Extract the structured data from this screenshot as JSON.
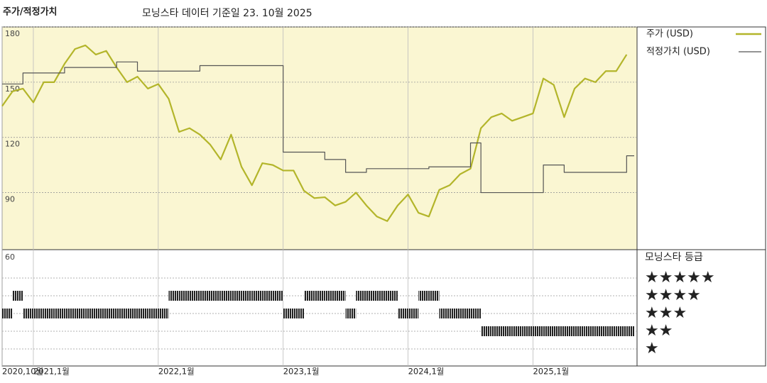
{
  "chart_data": {
    "type": "line",
    "title": "주가/적정가치",
    "subtitle": "모닝스타 데이터 기준일 23. 10월 2025",
    "x": [
      "2020-10",
      "2020-11",
      "2020-12",
      "2021-01",
      "2021-02",
      "2021-03",
      "2021-04",
      "2021-05",
      "2021-06",
      "2021-07",
      "2021-08",
      "2021-09",
      "2021-10",
      "2021-11",
      "2021-12",
      "2022-01",
      "2022-02",
      "2022-03",
      "2022-04",
      "2022-05",
      "2022-06",
      "2022-07",
      "2022-08",
      "2022-09",
      "2022-10",
      "2022-11",
      "2022-12",
      "2023-01",
      "2023-02",
      "2023-03",
      "2023-04",
      "2023-05",
      "2023-06",
      "2023-07",
      "2023-08",
      "2023-09",
      "2023-10",
      "2023-11",
      "2023-12",
      "2024-01",
      "2024-02",
      "2024-03",
      "2024-04",
      "2024-05",
      "2024-06",
      "2024-07",
      "2024-08",
      "2024-09",
      "2024-10",
      "2024-11",
      "2024-12",
      "2025-01",
      "2025-02",
      "2025-03",
      "2025-04",
      "2025-05",
      "2025-06",
      "2025-07",
      "2025-08",
      "2025-09",
      "2025-10"
    ],
    "series": [
      {
        "name": "주가 (USD)",
        "color": "#b3b52a",
        "values": [
          137,
          145,
          146.5,
          139,
          150,
          150,
          160,
          168,
          170,
          165,
          167,
          158,
          150,
          153,
          146.5,
          149,
          141,
          123,
          125,
          121.5,
          116,
          108,
          121.5,
          104,
          94,
          106,
          105,
          102,
          102,
          91,
          87,
          87.5,
          83,
          85,
          90,
          83,
          77,
          74.5,
          83,
          89,
          79,
          77,
          91.5,
          94,
          100,
          103,
          125,
          131,
          133,
          129,
          131,
          133,
          152,
          148.5,
          131,
          146.5,
          152,
          150,
          156,
          156,
          165
        ]
      },
      {
        "name": "적정가치 (USD)",
        "color": "#555555",
        "step": true,
        "values": [
          149,
          149,
          155,
          155,
          155,
          155,
          158,
          158,
          158,
          158,
          158,
          161,
          161,
          156,
          156,
          156,
          156,
          156,
          156,
          159,
          159,
          159,
          159,
          159,
          159,
          159,
          159,
          112,
          112,
          112,
          112,
          108,
          108,
          101,
          101,
          103,
          103,
          103,
          103,
          103,
          103,
          104,
          104,
          104,
          104,
          117,
          90,
          90,
          90,
          90,
          90,
          90,
          105,
          105,
          101,
          101,
          101,
          101,
          101,
          101,
          110
        ]
      }
    ],
    "xlim": [
      "2020-10",
      "2025-11"
    ],
    "xticks": [
      {
        "value": "2020-10",
        "label": "2020,10월"
      },
      {
        "value": "2021-01",
        "label": "2021,1월"
      },
      {
        "value": "2022-01",
        "label": "2022,1월"
      },
      {
        "value": "2023-01",
        "label": "2023,1월"
      },
      {
        "value": "2024-01",
        "label": "2024,1월"
      },
      {
        "value": "2025-01",
        "label": "2025,1월"
      }
    ],
    "ylim": [
      59,
      180
    ],
    "yticks": [
      90,
      120,
      150,
      180
    ],
    "grid": true,
    "legend": "top-right",
    "background": "#faf6d2",
    "ratings": {
      "title": "모닝스타 등급",
      "axis_label": 60,
      "levels": [
        {
          "value": 5,
          "label": "★★★★★"
        },
        {
          "value": 4,
          "label": "★★★★"
        },
        {
          "value": 3,
          "label": "★★★"
        },
        {
          "value": 2,
          "label": "★★"
        },
        {
          "value": 1,
          "label": "★"
        }
      ],
      "values": [
        3,
        4,
        3,
        3,
        3,
        3,
        3,
        3,
        3,
        3,
        3,
        3,
        3,
        3,
        3,
        3,
        4,
        4,
        4,
        4,
        4,
        4,
        4,
        4,
        4,
        4,
        4,
        3,
        3,
        4,
        4,
        4,
        4,
        3,
        4,
        4,
        4,
        4,
        3,
        3,
        4,
        4,
        3,
        3,
        3,
        3,
        2,
        2,
        2,
        2,
        2,
        2,
        2,
        2,
        2,
        2,
        2,
        2,
        2,
        2,
        2
      ]
    }
  }
}
